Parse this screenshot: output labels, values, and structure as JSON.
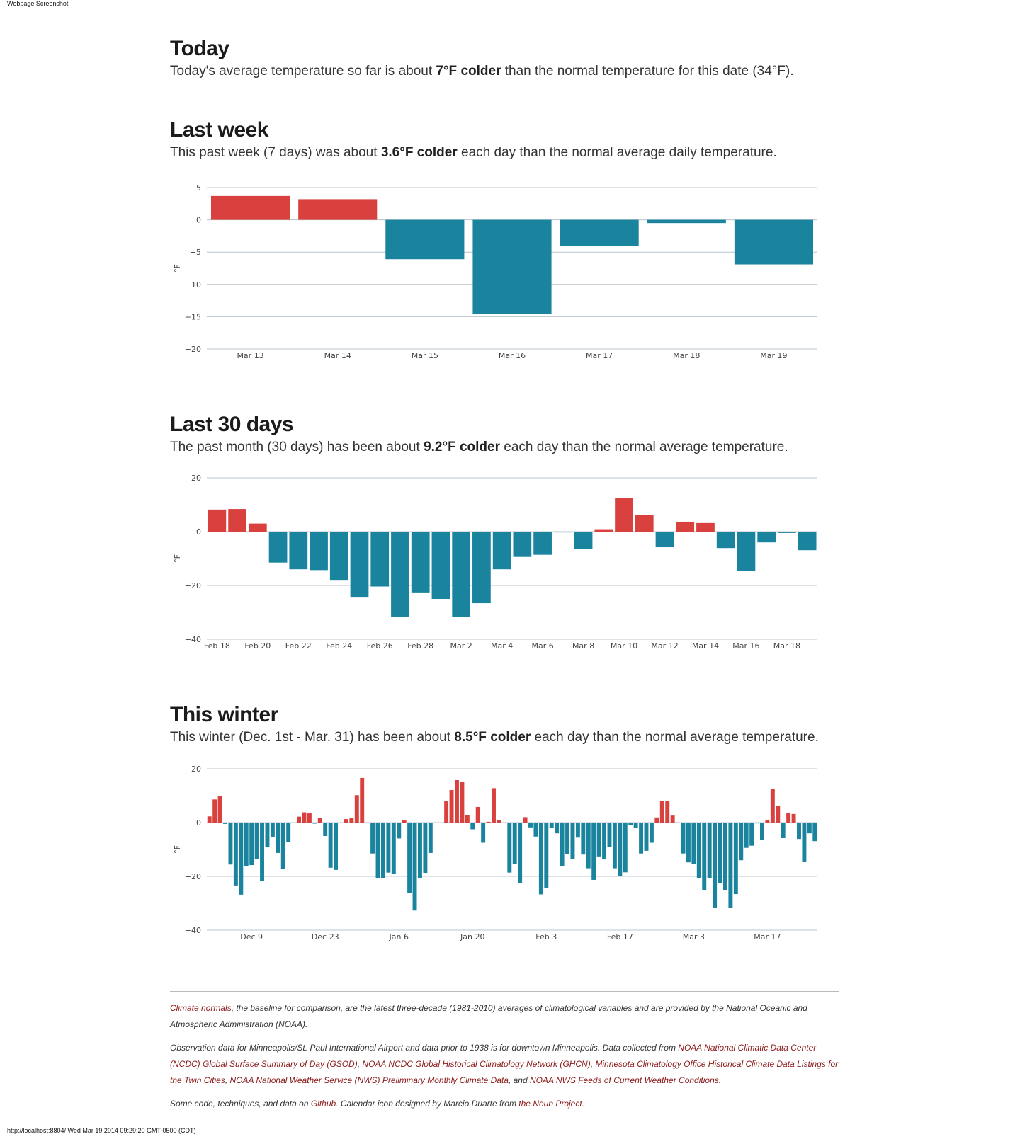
{
  "page_label": "Webpage Screenshot",
  "footer_url": "http://localhost:8804/ Wed Mar 19 2014 09:29:20 GMT-0500 (CDT)",
  "colors": {
    "warm": "#d9413e",
    "cold": "#1a849f",
    "grid": "#b8c4cc"
  },
  "today": {
    "title": "Today",
    "text_pre": "Today's average temperature so far is about ",
    "text_bold": "7°F colder",
    "text_post": " than the normal temperature for this date (34°F)."
  },
  "last_week": {
    "title": "Last week",
    "text_pre": "This past week (7 days) was about ",
    "text_bold": "3.6°F colder",
    "text_post": " each day than the normal average daily temperature."
  },
  "last_30": {
    "title": "Last 30 days",
    "text_pre": "The past month (30 days) has been about ",
    "text_bold": "9.2°F colder",
    "text_post": " each day than the normal average temperature."
  },
  "winter": {
    "title": "This winter",
    "text_pre": "This winter (Dec. 1st - Mar. 31) has been about ",
    "text_bold": "8.5°F colder",
    "text_post": " each day than the normal average temperature."
  },
  "chart_data": [
    {
      "type": "bar",
      "ylabel": "°F",
      "ylim": [
        -20,
        5
      ],
      "yticks": [
        5,
        0,
        -5,
        -10,
        -15,
        -20
      ],
      "categories": [
        "Mar 13",
        "Mar 14",
        "Mar 15",
        "Mar 16",
        "Mar 17",
        "Mar 18",
        "Mar 19"
      ],
      "xtick_labels": [
        "Mar 13",
        "Mar 14",
        "Mar 15",
        "Mar 16",
        "Mar 17",
        "Mar 18",
        "Mar 19"
      ],
      "values": [
        3.7,
        3.2,
        -6.1,
        -14.6,
        -4.0,
        -0.5,
        -6.9
      ]
    },
    {
      "type": "bar",
      "ylabel": "°F",
      "ylim": [
        -40,
        20
      ],
      "yticks": [
        20,
        0,
        -20,
        -40
      ],
      "categories": [
        "Feb 18",
        "Feb 19",
        "Feb 20",
        "Feb 21",
        "Feb 22",
        "Feb 23",
        "Feb 24",
        "Feb 25",
        "Feb 26",
        "Feb 27",
        "Feb 28",
        "Mar 1",
        "Mar 2",
        "Mar 3",
        "Mar 4",
        "Mar 5",
        "Mar 6",
        "Mar 7",
        "Mar 8",
        "Mar 9",
        "Mar 10",
        "Mar 11",
        "Mar 12",
        "Mar 13",
        "Mar 14",
        "Mar 15",
        "Mar 16",
        "Mar 17",
        "Mar 18",
        "Mar 19"
      ],
      "xtick_labels": [
        "Feb 18",
        "Feb 20",
        "Feb 22",
        "Feb 24",
        "Feb 26",
        "Feb 28",
        "Mar 2",
        "Mar 4",
        "Mar 6",
        "Mar 8",
        "Mar 10",
        "Mar 12",
        "Mar 14",
        "Mar 16",
        "Mar 18"
      ],
      "values": [
        8.2,
        8.4,
        3.0,
        -11.5,
        -14.0,
        -14.3,
        -18.2,
        -24.5,
        -20.4,
        -31.7,
        -22.6,
        -25.0,
        -31.8,
        -26.6,
        -14.0,
        -9.4,
        -8.6,
        -0.3,
        -6.5,
        0.9,
        12.6,
        6.1,
        -5.8,
        3.7,
        3.2,
        -6.1,
        -14.6,
        -4.0,
        -0.5,
        -6.9
      ]
    },
    {
      "type": "bar",
      "ylabel": "°F",
      "ylim": [
        -40,
        20
      ],
      "yticks": [
        20,
        0,
        -20,
        -40
      ],
      "categories_start": "Dec 1",
      "xtick_labels": [
        "Dec 9",
        "Dec 23",
        "Jan 6",
        "Jan 20",
        "Feb 3",
        "Feb 17",
        "Mar 3",
        "Mar 17"
      ],
      "xtick_day_index": [
        8,
        22,
        36,
        50,
        64,
        78,
        92,
        106
      ],
      "values": [
        2.3,
        8.6,
        9.8,
        -0.5,
        -15.6,
        -23.4,
        -26.8,
        -16.3,
        -15.8,
        -13.6,
        -21.7,
        -9.0,
        -5.5,
        -11.3,
        -17.3,
        -7.2,
        0.0,
        2.2,
        3.8,
        3.4,
        -0.4,
        1.6,
        -5.0,
        -16.8,
        -17.6,
        0.0,
        1.3,
        1.6,
        10.2,
        16.6,
        0.0,
        -11.5,
        -20.6,
        -20.7,
        -18.6,
        -19.0,
        -5.9,
        0.8,
        -26.2,
        -32.7,
        -20.8,
        -18.7,
        -11.3,
        0.0,
        0.0,
        7.9,
        12.1,
        15.8,
        15.0,
        2.7,
        -2.5,
        5.8,
        -7.5,
        0.3,
        12.8,
        0.9,
        0.0,
        -18.6,
        -15.3,
        -22.5,
        2.0,
        -1.8,
        -5.2,
        -26.7,
        -24.2,
        -2.1,
        -4.0,
        -16.3,
        -11.6,
        -13.6,
        -5.6,
        -11.9,
        -17.0,
        -21.3,
        -12.6,
        -13.7,
        -9.0,
        -17.0,
        -19.8,
        -18.5,
        -1.0,
        -2.0,
        -11.5,
        -10.5,
        -7.5,
        1.9,
        8.0,
        8.1,
        2.6,
        0.0,
        -11.5,
        -14.8,
        -15.5,
        -20.6,
        -25.0,
        -20.6,
        -31.7,
        -22.6,
        -25.0,
        -31.8,
        -26.6,
        -14.0,
        -9.4,
        -8.6,
        -0.3,
        -6.5,
        0.9,
        12.6,
        6.1,
        -5.8,
        3.7,
        3.2,
        -6.1,
        -14.6,
        -4.0,
        -6.9
      ]
    }
  ],
  "footnotes": {
    "p1_link": "Climate normals",
    "p1_text": ", the baseline for comparison, are the latest three-decade (1981-2010) averages of climatological variables and are provided by the National Oceanic and Atmospheric Administration (NOAA).",
    "p2_pre": "Observation data for Minneapolis/St. Paul International Airport and data prior to 1938 is for downtown Minneapolis. Data collected from ",
    "p2_link1": "NOAA National Climatic Data Center (NCDC) Global Surface Summary of Day (GSOD)",
    "p2_sep1": ", ",
    "p2_link2": "NOAA NCDC Global Historical Climatology Network (GHCN)",
    "p2_sep2": ", ",
    "p2_link3": "Minnesota Climatology Office Historical Climate Data Listings for the Twin Cities",
    "p2_sep3": ", ",
    "p2_link4": "NOAA National Weather Service (NWS) Preliminary Monthly Climate Data",
    "p2_sep4": ", and ",
    "p2_link5": "NOAA NWS Feeds of Current Weather Conditions",
    "p2_end": ".",
    "p3_pre": "Some code, techniques, and data on ",
    "p3_link1": "Github",
    "p3_mid": ". Calendar icon designed by Marcio Duarte from ",
    "p3_link2": "the Noun Project",
    "p3_end": "."
  }
}
